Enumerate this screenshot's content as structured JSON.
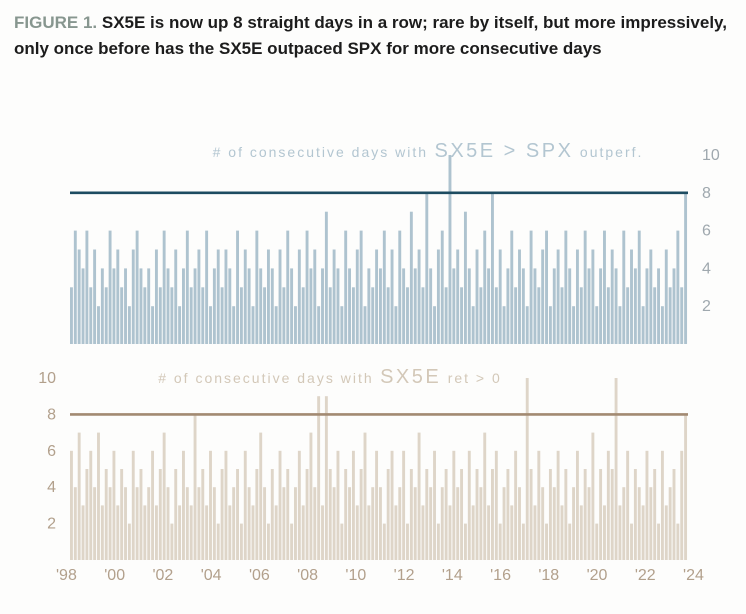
{
  "header": {
    "figure_label": "FIGURE 1.",
    "title_text": "SX5E is now up 8 straight days in a row;  rare by itself, but more impressively, only once before has the SX5E outpaced SPX for more consecutive days"
  },
  "axis": {
    "x_labels": [
      "'98",
      "'00",
      "'02",
      "'04",
      "'06",
      "'08",
      "'10",
      "'12",
      "'14",
      "'16",
      "'18",
      "'20",
      "'22",
      "'24"
    ]
  },
  "chart_data": [
    {
      "type": "bar",
      "title_prefix": "# of consecutive days with",
      "title_main": "SX5E > SPX",
      "title_suffix": "outperf.",
      "series_name": "consecutive days SX5E outperformed SPX",
      "x_range": [
        "1998",
        "2024"
      ],
      "ylim": [
        0,
        10.5
      ],
      "yticks": [
        2,
        4,
        6,
        8,
        10
      ],
      "tick_side": "right",
      "threshold_line": 8,
      "grid": false,
      "bar_color": "#aec3cf",
      "line_color": "#1d4c61",
      "tick_color": "#9fa8ae",
      "title_color": "#b3c6d1",
      "values": [
        3,
        6,
        5,
        4,
        6,
        3,
        5,
        2,
        4,
        3,
        6,
        4,
        5,
        3,
        4,
        2,
        5,
        6,
        4,
        3,
        4,
        2,
        5,
        3,
        6,
        4,
        3,
        5,
        2,
        4,
        6,
        3,
        4,
        5,
        3,
        6,
        2,
        4,
        5,
        3,
        5,
        4,
        2,
        6,
        3,
        5,
        4,
        2,
        6,
        4,
        3,
        5,
        4,
        2,
        5,
        3,
        6,
        4,
        2,
        5,
        3,
        6,
        4,
        5,
        2,
        4,
        7,
        3,
        5,
        4,
        2,
        6,
        4,
        3,
        5,
        6,
        2,
        4,
        3,
        5,
        4,
        6,
        3,
        5,
        2,
        6,
        4,
        3,
        7,
        4,
        5,
        3,
        8,
        4,
        2,
        5,
        6,
        3,
        10,
        4,
        5,
        3,
        7,
        4,
        2,
        5,
        3,
        6,
        4,
        8,
        3,
        5,
        2,
        4,
        6,
        3,
        5,
        4,
        2,
        6,
        4,
        3,
        5,
        6,
        2,
        4,
        5,
        3,
        6,
        4,
        2,
        5,
        3,
        6,
        4,
        5,
        2,
        4,
        6,
        3,
        5,
        4,
        2,
        6,
        3,
        5,
        4,
        6,
        2,
        4,
        5,
        3,
        4,
        2,
        5,
        3,
        4,
        6,
        3,
        8
      ]
    },
    {
      "type": "bar",
      "title_prefix": "# of consecutive days with",
      "title_main": "SX5E",
      "title_suffix": "ret > 0",
      "series_name": "consecutive days SX5E return positive",
      "x_range": [
        "1998",
        "2024"
      ],
      "ylim": [
        0,
        10.5
      ],
      "yticks": [
        2,
        4,
        6,
        8,
        10
      ],
      "tick_side": "left",
      "threshold_line": 8,
      "grid": false,
      "bar_color": "#ded5c8",
      "line_color": "#a28a72",
      "tick_color": "#b2a08c",
      "title_color": "#d3c8b8",
      "values": [
        6,
        4,
        7,
        3,
        5,
        6,
        4,
        7,
        3,
        5,
        4,
        6,
        3,
        5,
        4,
        2,
        6,
        4,
        5,
        3,
        4,
        6,
        3,
        5,
        7,
        4,
        2,
        5,
        3,
        6,
        4,
        3,
        8,
        4,
        5,
        3,
        6,
        4,
        2,
        5,
        6,
        3,
        4,
        5,
        2,
        6,
        4,
        3,
        5,
        7,
        4,
        2,
        5,
        3,
        6,
        4,
        5,
        2,
        4,
        6,
        3,
        5,
        7,
        4,
        9,
        3,
        9,
        5,
        4,
        6,
        2,
        5,
        4,
        6,
        3,
        5,
        7,
        3,
        4,
        6,
        4,
        2,
        5,
        6,
        3,
        4,
        6,
        2,
        5,
        4,
        7,
        3,
        5,
        4,
        6,
        2,
        4,
        5,
        3,
        6,
        4,
        5,
        2,
        6,
        3,
        5,
        4,
        7,
        3,
        5,
        6,
        2,
        4,
        5,
        3,
        6,
        4,
        2,
        10,
        5,
        3,
        6,
        4,
        2,
        5,
        4,
        6,
        3,
        5,
        2,
        4,
        6,
        3,
        5,
        4,
        7,
        2,
        5,
        3,
        6,
        5,
        10,
        3,
        4,
        6,
        2,
        5,
        4,
        3,
        6,
        4,
        5,
        2,
        6,
        3,
        4,
        5,
        2,
        6,
        8
      ]
    }
  ]
}
